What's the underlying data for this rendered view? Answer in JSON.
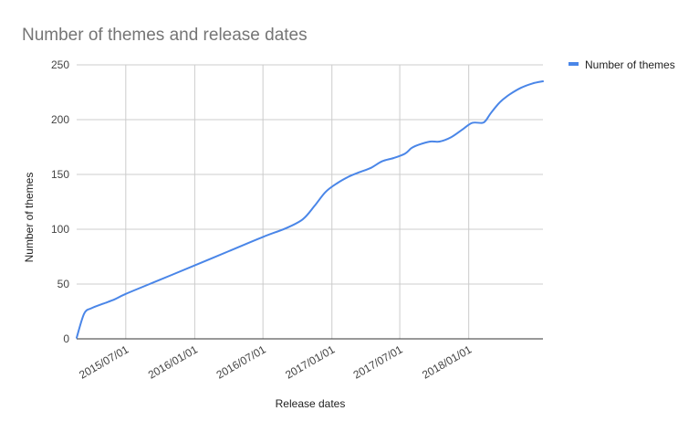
{
  "chart_data": {
    "type": "line",
    "title": "Number of themes and release dates",
    "xlabel": "Release dates",
    "ylabel": "Number of themes",
    "x_type": "date",
    "xlim": [
      "2015-02-20",
      "2018-07-18"
    ],
    "ylim": [
      0,
      250
    ],
    "yticks": [
      0,
      50,
      100,
      150,
      200,
      250
    ],
    "xticks": [
      {
        "value": "2015-07-01",
        "label": "2015/07/01"
      },
      {
        "value": "2016-01-01",
        "label": "2016/01/01"
      },
      {
        "value": "2016-07-01",
        "label": "2016/07/01"
      },
      {
        "value": "2017-01-01",
        "label": "2017/01/01"
      },
      {
        "value": "2017-07-01",
        "label": "2017/07/01"
      },
      {
        "value": "2018-01-01",
        "label": "2018/01/01"
      }
    ],
    "grid": true,
    "legend": "right",
    "series": [
      {
        "name": "Number of themes",
        "color": "#4a86e8",
        "points": [
          [
            "2015-02-20",
            1
          ],
          [
            "2015-03-12",
            23
          ],
          [
            "2015-04-01",
            28
          ],
          [
            "2015-05-01",
            32
          ],
          [
            "2015-06-01",
            36
          ],
          [
            "2015-07-01",
            41
          ],
          [
            "2015-10-01",
            54
          ],
          [
            "2016-01-01",
            67
          ],
          [
            "2016-04-01",
            80
          ],
          [
            "2016-07-01",
            93
          ],
          [
            "2016-09-01",
            101
          ],
          [
            "2016-10-15",
            109
          ],
          [
            "2016-11-15",
            121
          ],
          [
            "2016-12-15",
            134
          ],
          [
            "2017-01-15",
            142
          ],
          [
            "2017-02-15",
            148
          ],
          [
            "2017-03-15",
            152
          ],
          [
            "2017-04-15",
            156
          ],
          [
            "2017-05-15",
            162
          ],
          [
            "2017-06-15",
            165
          ],
          [
            "2017-07-15",
            169
          ],
          [
            "2017-08-01",
            174
          ],
          [
            "2017-08-20",
            177
          ],
          [
            "2017-09-20",
            180
          ],
          [
            "2017-10-15",
            180
          ],
          [
            "2017-11-15",
            184
          ],
          [
            "2017-12-15",
            191
          ],
          [
            "2018-01-10",
            197
          ],
          [
            "2018-02-05",
            197
          ],
          [
            "2018-02-15",
            199
          ],
          [
            "2018-03-01",
            206
          ],
          [
            "2018-03-20",
            214
          ],
          [
            "2018-04-01",
            218
          ],
          [
            "2018-04-20",
            223
          ],
          [
            "2018-05-20",
            229
          ],
          [
            "2018-06-20",
            233
          ],
          [
            "2018-07-18",
            235
          ]
        ]
      }
    ]
  }
}
